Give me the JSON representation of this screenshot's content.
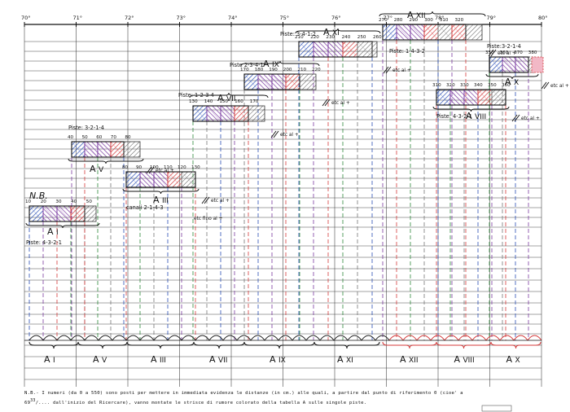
{
  "degree_ruler": [
    "70°",
    "71°",
    "72°",
    "73°",
    "74°",
    "75°",
    "76°",
    "77°",
    "78°",
    "79°",
    "80°"
  ],
  "nb_label": "N.B.",
  "colors": {
    "blue": "#2a4fb5",
    "purple": "#7a3aa0",
    "red": "#d43a3a",
    "green": "#2f8a3c",
    "grey": "#777777",
    "black": "#111111",
    "pink_fill": "#f2b8c6"
  },
  "strips": [
    {
      "id": "AI",
      "name": "A I",
      "piste": "Piste: 4-3-2-1",
      "ticks": [
        "10",
        "20",
        "30",
        "40",
        "50"
      ],
      "trail": ""
    },
    {
      "id": "AV",
      "name": "A V",
      "piste": "Piste: 3-2-1-4",
      "ticks": [
        "40",
        "50",
        "60",
        "70",
        "80"
      ],
      "trail": "etc al +"
    },
    {
      "id": "AIII",
      "name": "A III",
      "piste": "canali 2-1-4-3",
      "ticks": [
        "80",
        "90",
        "100",
        "110",
        "120",
        "130"
      ],
      "trail": "etc al +",
      "extra": "etc fino al +"
    },
    {
      "id": "AVII",
      "name": "A VII",
      "piste": "Piste: 1-2-3-4",
      "ticks": [
        "130",
        "140",
        "150",
        "160",
        "170"
      ],
      "trail": "etc al +"
    },
    {
      "id": "AIX",
      "name": "A IX",
      "piste": "Piste 2-3-4-1",
      "ticks": [
        "170",
        "180",
        "190",
        "200",
        "210",
        "220"
      ],
      "trail": "etc al +"
    },
    {
      "id": "AXI",
      "name": "A XI",
      "piste": "Piste: 3-4-1-2",
      "ticks": [
        "210",
        "220",
        "230",
        "240",
        "250",
        "260"
      ],
      "trail": "etc al +"
    },
    {
      "id": "AXII",
      "name": "A XII",
      "piste": "Piste: 1-4-3-2",
      "ticks": [
        "270",
        "280",
        "290",
        "300",
        "310",
        "320"
      ],
      "trail": "etc al +"
    },
    {
      "id": "AVIII",
      "name": "A VIII",
      "piste": "Piste: 4-3-2-1",
      "ticks": [
        "310",
        "320",
        "330",
        "340",
        "350",
        "360"
      ],
      "trail": "etc al +"
    },
    {
      "id": "AX",
      "name": "A X",
      "piste": "Piste:3-2-1-4",
      "ticks": [
        "350",
        "360",
        "370",
        "380"
      ],
      "trail": "etc al +"
    }
  ],
  "bottom_labels": [
    "A I",
    "A V",
    "A III",
    "A VII",
    "A IX",
    "A XI",
    "A XII",
    "A VIII",
    "A X"
  ],
  "footnote": {
    "line1": "N.B.- I numeri (da 0 a 550) sono posti per mettere in immediata evidenza le distanze (in cm.) alle quali, a partire dal punto di riferimento 0 (cioe' a",
    "num": "69",
    "sup": "33",
    "line2": "/.... dall'inizio del Ricercare), vanno montate le strisce di rumore colorato della tabella A sulle singole piste."
  }
}
